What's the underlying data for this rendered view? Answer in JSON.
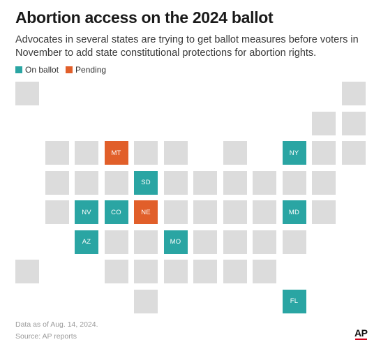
{
  "title": "Abortion access on the 2024 ballot",
  "subtitle": "Advocates in several states are trying to get ballot measures before voters in November to add state constitutional protections for abortion rights.",
  "colors": {
    "on_ballot": "#2aa5a3",
    "pending": "#e15f2a",
    "other": "#dcdcdc"
  },
  "legend": [
    {
      "label": "On ballot",
      "status": "on_ballot"
    },
    {
      "label": "Pending",
      "status": "pending"
    }
  ],
  "tiles": [
    {
      "row": 0,
      "col": 0,
      "label": "",
      "status": "other"
    },
    {
      "row": 0,
      "col": 11,
      "label": "",
      "status": "other"
    },
    {
      "row": 1,
      "col": 10,
      "label": "",
      "status": "other"
    },
    {
      "row": 1,
      "col": 11,
      "label": "",
      "status": "other"
    },
    {
      "row": 2,
      "col": 1,
      "label": "",
      "status": "other"
    },
    {
      "row": 2,
      "col": 2,
      "label": "",
      "status": "other"
    },
    {
      "row": 2,
      "col": 3,
      "label": "MT",
      "status": "pending"
    },
    {
      "row": 2,
      "col": 4,
      "label": "",
      "status": "other"
    },
    {
      "row": 2,
      "col": 5,
      "label": "",
      "status": "other"
    },
    {
      "row": 2,
      "col": 7,
      "label": "",
      "status": "other"
    },
    {
      "row": 2,
      "col": 9,
      "label": "NY",
      "status": "on_ballot"
    },
    {
      "row": 2,
      "col": 10,
      "label": "",
      "status": "other"
    },
    {
      "row": 2,
      "col": 11,
      "label": "",
      "status": "other"
    },
    {
      "row": 3,
      "col": 1,
      "label": "",
      "status": "other"
    },
    {
      "row": 3,
      "col": 2,
      "label": "",
      "status": "other"
    },
    {
      "row": 3,
      "col": 3,
      "label": "",
      "status": "other"
    },
    {
      "row": 3,
      "col": 4,
      "label": "SD",
      "status": "on_ballot"
    },
    {
      "row": 3,
      "col": 5,
      "label": "",
      "status": "other"
    },
    {
      "row": 3,
      "col": 6,
      "label": "",
      "status": "other"
    },
    {
      "row": 3,
      "col": 7,
      "label": "",
      "status": "other"
    },
    {
      "row": 3,
      "col": 8,
      "label": "",
      "status": "other"
    },
    {
      "row": 3,
      "col": 9,
      "label": "",
      "status": "other"
    },
    {
      "row": 3,
      "col": 10,
      "label": "",
      "status": "other"
    },
    {
      "row": 4,
      "col": 1,
      "label": "",
      "status": "other"
    },
    {
      "row": 4,
      "col": 2,
      "label": "NV",
      "status": "on_ballot"
    },
    {
      "row": 4,
      "col": 3,
      "label": "CO",
      "status": "on_ballot"
    },
    {
      "row": 4,
      "col": 4,
      "label": "NE",
      "status": "pending"
    },
    {
      "row": 4,
      "col": 5,
      "label": "",
      "status": "other"
    },
    {
      "row": 4,
      "col": 6,
      "label": "",
      "status": "other"
    },
    {
      "row": 4,
      "col": 7,
      "label": "",
      "status": "other"
    },
    {
      "row": 4,
      "col": 8,
      "label": "",
      "status": "other"
    },
    {
      "row": 4,
      "col": 9,
      "label": "MD",
      "status": "on_ballot"
    },
    {
      "row": 4,
      "col": 10,
      "label": "",
      "status": "other"
    },
    {
      "row": 5,
      "col": 2,
      "label": "AZ",
      "status": "on_ballot"
    },
    {
      "row": 5,
      "col": 3,
      "label": "",
      "status": "other"
    },
    {
      "row": 5,
      "col": 4,
      "label": "",
      "status": "other"
    },
    {
      "row": 5,
      "col": 5,
      "label": "MO",
      "status": "on_ballot"
    },
    {
      "row": 5,
      "col": 6,
      "label": "",
      "status": "other"
    },
    {
      "row": 5,
      "col": 7,
      "label": "",
      "status": "other"
    },
    {
      "row": 5,
      "col": 8,
      "label": "",
      "status": "other"
    },
    {
      "row": 5,
      "col": 9,
      "label": "",
      "status": "other"
    },
    {
      "row": 6,
      "col": 0,
      "label": "",
      "status": "other"
    },
    {
      "row": 6,
      "col": 3,
      "label": "",
      "status": "other"
    },
    {
      "row": 6,
      "col": 4,
      "label": "",
      "status": "other"
    },
    {
      "row": 6,
      "col": 5,
      "label": "",
      "status": "other"
    },
    {
      "row": 6,
      "col": 6,
      "label": "",
      "status": "other"
    },
    {
      "row": 6,
      "col": 7,
      "label": "",
      "status": "other"
    },
    {
      "row": 6,
      "col": 8,
      "label": "",
      "status": "other"
    },
    {
      "row": 7,
      "col": 4,
      "label": "",
      "status": "other"
    },
    {
      "row": 7,
      "col": 9,
      "label": "FL",
      "status": "on_ballot"
    }
  ],
  "footnote": {
    "date": "Data as of Aug. 14, 2024.",
    "source": "Source: AP reports"
  },
  "logo": "AP"
}
